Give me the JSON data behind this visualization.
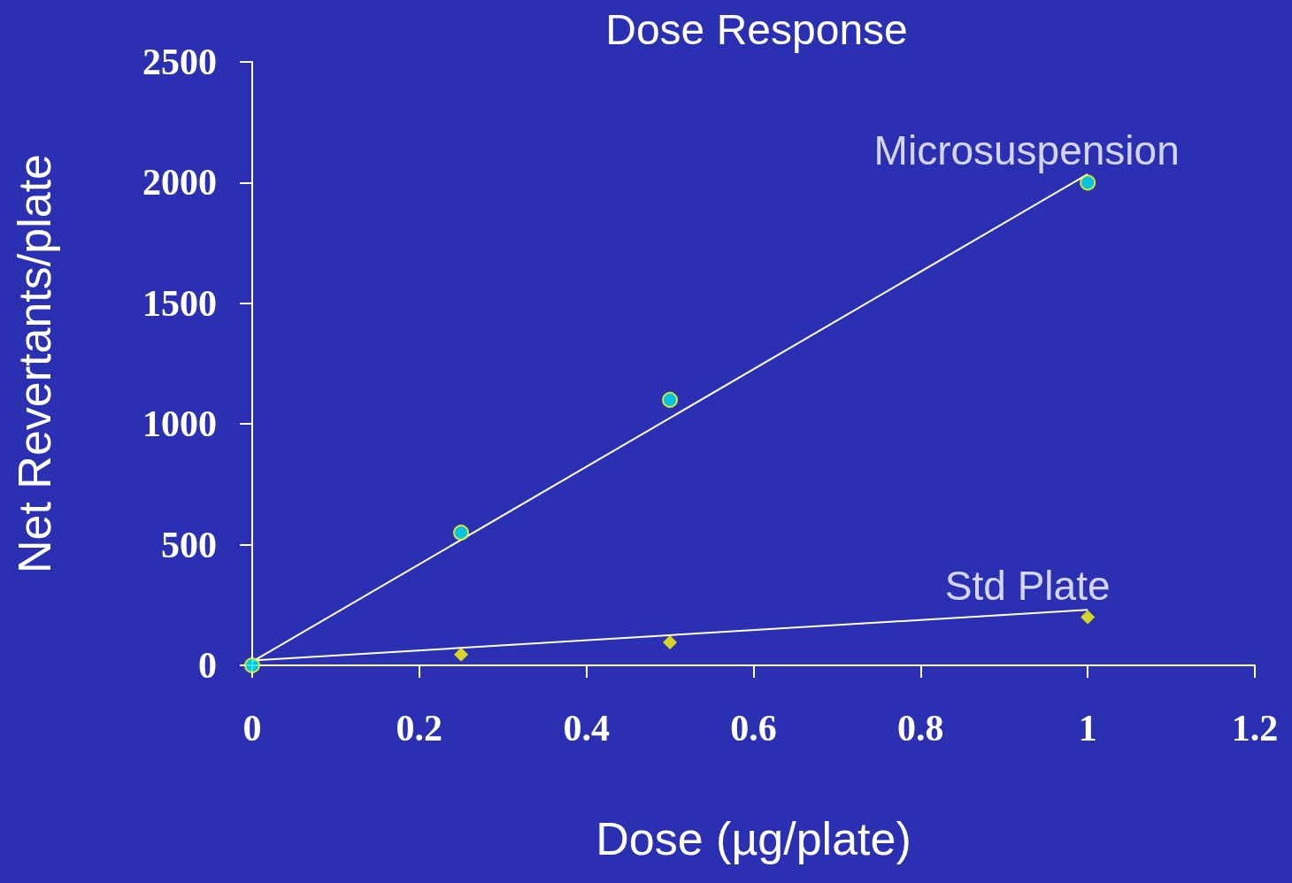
{
  "chart_data": {
    "type": "scatter",
    "title": "Dose Response",
    "xlabel": "Dose (µg/plate)",
    "ylabel": "Net Revertants/plate",
    "xlim": [
      0,
      1.2
    ],
    "xticks": [
      0,
      0.2,
      0.4,
      0.6,
      0.8,
      1,
      1.2
    ],
    "ylim": [
      0,
      2500
    ],
    "yticks": [
      0,
      500,
      1000,
      1500,
      2000,
      2500
    ],
    "grid": false,
    "legend": false,
    "series": [
      {
        "type": "line",
        "color": "#ffffff",
        "x": [
          0,
          1
        ],
        "values": [
          15,
          2035
        ],
        "marker": "none"
      },
      {
        "type": "line",
        "color": "#ffffff",
        "x": [
          0,
          1
        ],
        "values": [
          20,
          230
        ],
        "marker": "none"
      },
      {
        "type": "scatter",
        "name": "Microsuspension",
        "color": "#00e5f0",
        "x": [
          0,
          0.25,
          0.5,
          1
        ],
        "values": [
          0,
          550,
          1100,
          2000
        ],
        "marker": "circle"
      },
      {
        "type": "scatter",
        "name": "Std Plate",
        "color": "#ffff00",
        "x": [
          0.25,
          0.5,
          1
        ],
        "values": [
          45,
          95,
          200
        ],
        "marker": "diamond"
      }
    ]
  }
}
